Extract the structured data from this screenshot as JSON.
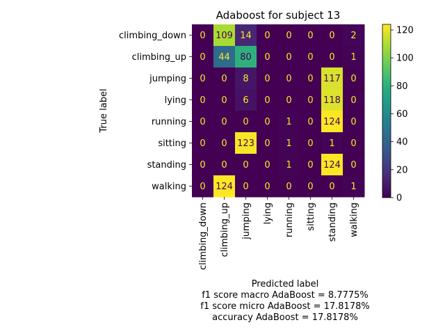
{
  "chart_data": {
    "type": "heatmap",
    "title": "Adaboost for subject 13",
    "xlabel": "Predicted label",
    "ylabel": "True label",
    "row_labels": [
      "climbing_down",
      "climbing_up",
      "jumping",
      "lying",
      "running",
      "sitting",
      "standing",
      "walking"
    ],
    "col_labels": [
      "climbing_down",
      "climbing_up",
      "jumping",
      "lying",
      "running",
      "sitting",
      "standing",
      "walking"
    ],
    "matrix": [
      [
        0,
        109,
        14,
        0,
        0,
        0,
        0,
        2
      ],
      [
        0,
        44,
        80,
        0,
        0,
        0,
        0,
        1
      ],
      [
        0,
        0,
        8,
        0,
        0,
        0,
        117,
        0
      ],
      [
        0,
        0,
        6,
        0,
        0,
        0,
        118,
        0
      ],
      [
        0,
        0,
        0,
        0,
        1,
        0,
        124,
        0
      ],
      [
        0,
        0,
        123,
        0,
        1,
        0,
        1,
        0
      ],
      [
        0,
        0,
        0,
        0,
        1,
        0,
        124,
        0
      ],
      [
        0,
        124,
        0,
        0,
        0,
        0,
        0,
        1
      ]
    ],
    "colormap": "viridis",
    "colorbar_range": [
      0,
      124
    ],
    "colorbar_ticks": [
      0,
      20,
      40,
      60,
      80,
      100,
      120
    ],
    "footer_lines": [
      "f1 score macro AdaBoost = 8.7775%",
      "f1 score micro AdaBoost = 17.8178%",
      "accuracy AdaBoost = 17.8178%"
    ]
  }
}
